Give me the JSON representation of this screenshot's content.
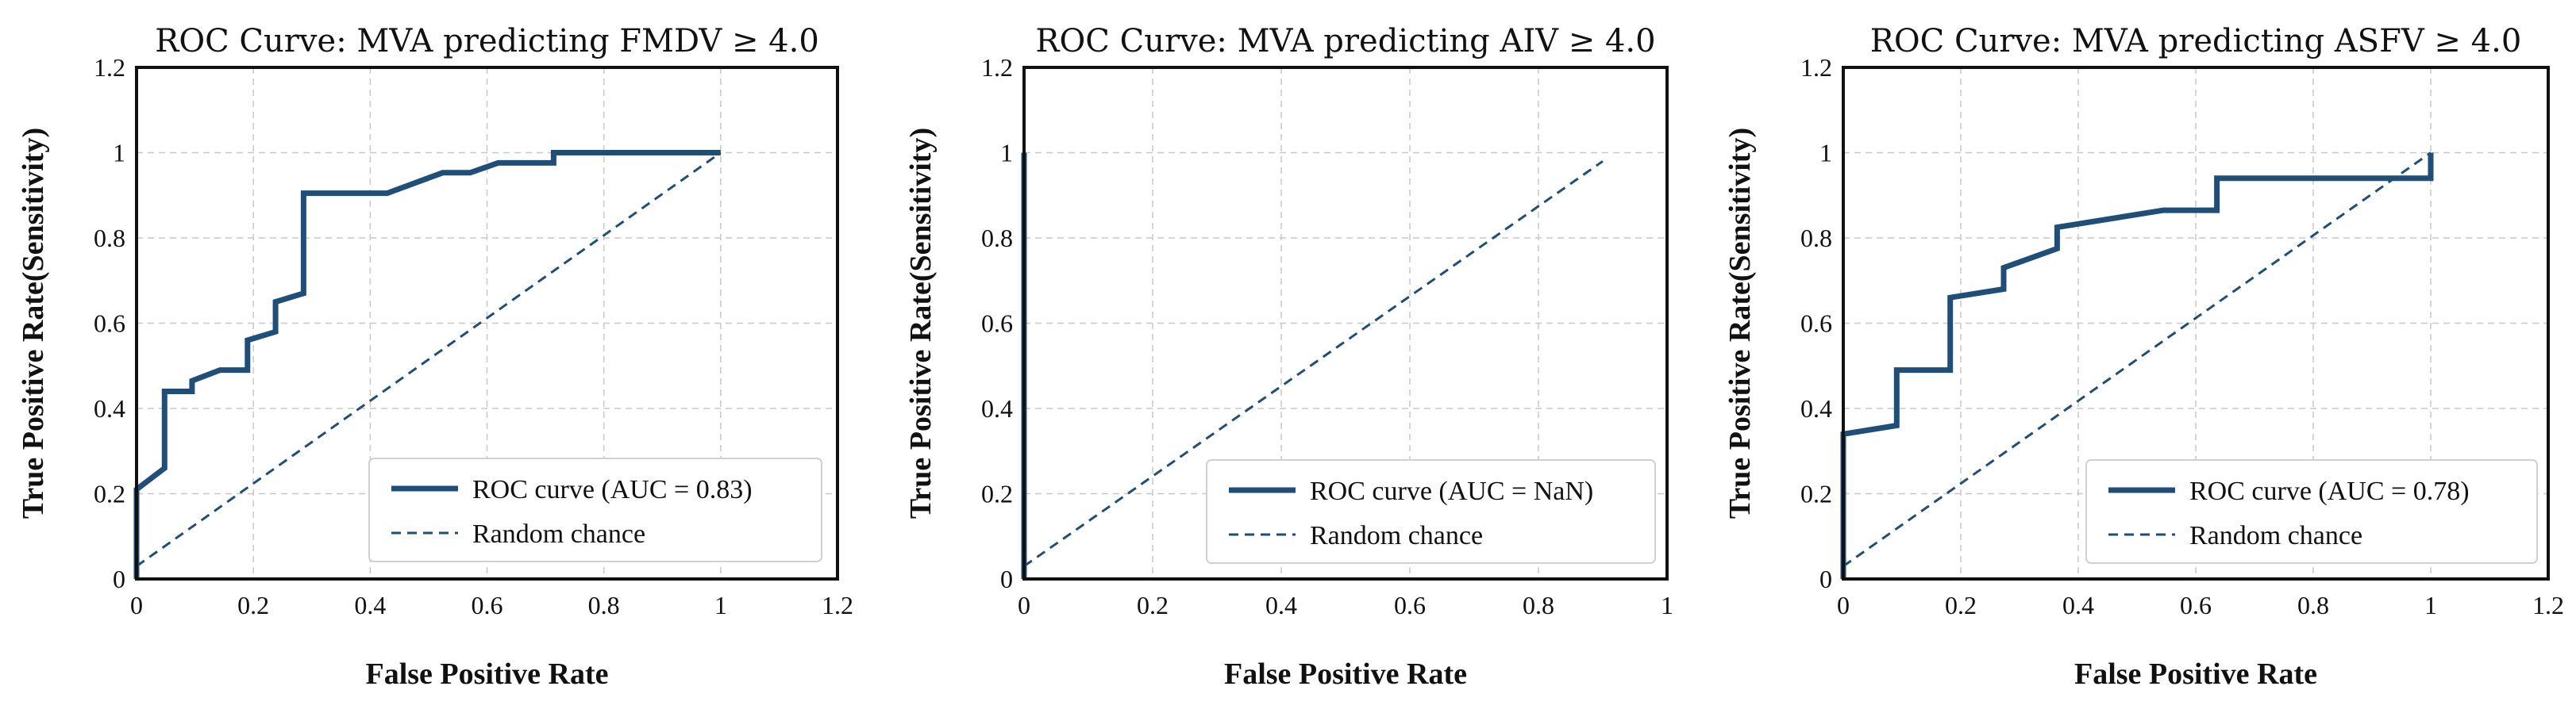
{
  "chart_data": [
    {
      "type": "line",
      "title": "ROC Curve: MVA predicting FMDV ≥ 4.0",
      "xlabel": "False Positive Rate",
      "ylabel": "True Positive Rate(Sensitivity)",
      "xlim": [
        0,
        1.2
      ],
      "ylim": [
        0,
        1.2
      ],
      "xticks": [
        "0",
        "0.2",
        "0.4",
        "0.6",
        "0.8",
        "1",
        "1.2"
      ],
      "yticks": [
        "0",
        "0.2",
        "0.4",
        "0.6",
        "0.8",
        "1",
        "1.2"
      ],
      "grid": true,
      "legend_position": "bottom-right",
      "series": [
        {
          "name": "ROC curve (AUC = 0.83)",
          "style": "solid",
          "color": "#1f4e79",
          "x": [
            0,
            0,
            0.048,
            0.048,
            0.048,
            0.095,
            0.095,
            0.143,
            0.19,
            0.19,
            0.238,
            0.238,
            0.286,
            0.286,
            0.429,
            0.524,
            0.571,
            0.619,
            0.714,
            0.714,
            1
          ],
          "y": [
            0,
            0.21,
            0.26,
            0.44,
            0.44,
            0.44,
            0.465,
            0.49,
            0.49,
            0.56,
            0.58,
            0.65,
            0.67,
            0.905,
            0.905,
            0.953,
            0.953,
            0.976,
            0.976,
            1,
            1
          ]
        },
        {
          "name": "Random chance",
          "style": "dashed",
          "color": "#1f4e79",
          "x": [
            0,
            1
          ],
          "y": [
            0.03,
            1
          ]
        }
      ]
    },
    {
      "type": "line",
      "title": "ROC Curve: MVA predicting AIV ≥ 4.0",
      "xlabel": "False Positive Rate",
      "ylabel": "True Positive Rate(Sensitivity)",
      "xlim": [
        0,
        1
      ],
      "ylim": [
        0,
        1.2
      ],
      "xticks": [
        "0",
        "0.2",
        "0.4",
        "0.6",
        "0.8",
        "1"
      ],
      "yticks": [
        "0",
        "0.2",
        "0.4",
        "0.6",
        "0.8",
        "1",
        "1.2"
      ],
      "grid": true,
      "legend_position": "bottom-right",
      "series": [
        {
          "name": "ROC curve (AUC = NaN)",
          "style": "solid",
          "color": "#1f4e79",
          "x": [
            0,
            0
          ],
          "y": [
            0,
            1
          ]
        },
        {
          "name": "Random chance",
          "style": "dashed",
          "color": "#1f4e79",
          "x": [
            0,
            0.9
          ],
          "y": [
            0.03,
            0.98
          ]
        }
      ]
    },
    {
      "type": "line",
      "title": "ROC Curve: MVA predicting ASFV ≥ 4.0",
      "xlabel": "False Positive Rate",
      "ylabel": "True Positive Rate(Sensitivity)",
      "xlim": [
        0,
        1.2
      ],
      "ylim": [
        0,
        1.2
      ],
      "xticks": [
        "0",
        "0.2",
        "0.4",
        "0.6",
        "0.8",
        "1",
        "1.2"
      ],
      "yticks": [
        "0",
        "0.2",
        "0.4",
        "0.6",
        "0.8",
        "1",
        "1.2"
      ],
      "grid": true,
      "legend_position": "bottom-right",
      "series": [
        {
          "name": "ROC curve (AUC = 0.78)",
          "style": "solid",
          "color": "#1f4e79",
          "x": [
            0,
            0,
            0.091,
            0.091,
            0.182,
            0.182,
            0.273,
            0.273,
            0.364,
            0.364,
            0.545,
            0.636,
            0.636,
            1,
            1
          ],
          "y": [
            0,
            0.34,
            0.36,
            0.49,
            0.49,
            0.66,
            0.68,
            0.73,
            0.775,
            0.825,
            0.865,
            0.865,
            0.94,
            0.94,
            1
          ]
        },
        {
          "name": "Random chance",
          "style": "dashed",
          "color": "#1f4e79",
          "x": [
            0,
            1
          ],
          "y": [
            0.03,
            1
          ]
        }
      ]
    }
  ]
}
